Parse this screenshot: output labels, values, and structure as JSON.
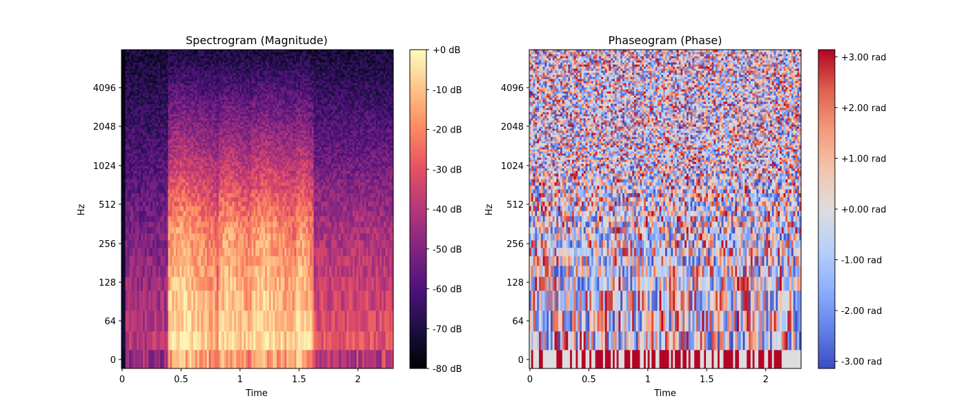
{
  "chart_data": [
    {
      "type": "heatmap",
      "title": "Spectrogram (Magnitude)",
      "xlabel": "Time",
      "ylabel": "Hz",
      "x_ticks": [
        "0",
        "0.5",
        "1",
        "1.5",
        "2"
      ],
      "x_tick_values": [
        0,
        0.5,
        1,
        1.5,
        2
      ],
      "xlim": [
        0,
        2.3
      ],
      "y_ticks": [
        "0",
        "64",
        "128",
        "256",
        "512",
        "1024",
        "2048",
        "4096"
      ],
      "y_scale": "log (librosa log frequency axis)",
      "colormap": "magma",
      "colorbar_ticks": [
        "+0 dB",
        "-10 dB",
        "-20 dB",
        "-30 dB",
        "-40 dB",
        "-50 dB",
        "-60 dB",
        "-70 dB",
        "-80 dB"
      ],
      "colorbar_values": [
        0,
        -10,
        -20,
        -30,
        -40,
        -50,
        -60,
        -70,
        -80
      ],
      "value_range": [
        -80,
        0
      ],
      "energy_profile": {
        "silence_before": 0.4,
        "bursts": [
          [
            0.4,
            0.8
          ],
          [
            0.82,
            1.1
          ],
          [
            1.1,
            1.48
          ],
          [
            1.48,
            1.62
          ]
        ],
        "tail_start": 1.62
      }
    },
    {
      "type": "heatmap",
      "title": "Phaseogram (Phase)",
      "xlabel": "Time",
      "ylabel": "Hz",
      "x_ticks": [
        "0",
        "0.5",
        "1",
        "1.5",
        "2"
      ],
      "x_tick_values": [
        0,
        0.5,
        1,
        1.5,
        2
      ],
      "xlim": [
        0,
        2.3
      ],
      "y_ticks": [
        "0",
        "64",
        "128",
        "256",
        "512",
        "1024",
        "2048",
        "4096"
      ],
      "y_scale": "log (librosa log frequency axis)",
      "colormap": "coolwarm",
      "colorbar_ticks": [
        "+3.00 rad",
        "+2.00 rad",
        "+1.00 rad",
        "+0.00 rad",
        "-1.00 rad",
        "-2.00 rad",
        "-3.00 rad"
      ],
      "colorbar_values": [
        3,
        2,
        1,
        0,
        -1,
        -2,
        -3
      ],
      "value_range": [
        -3.14159,
        3.14159
      ]
    }
  ]
}
